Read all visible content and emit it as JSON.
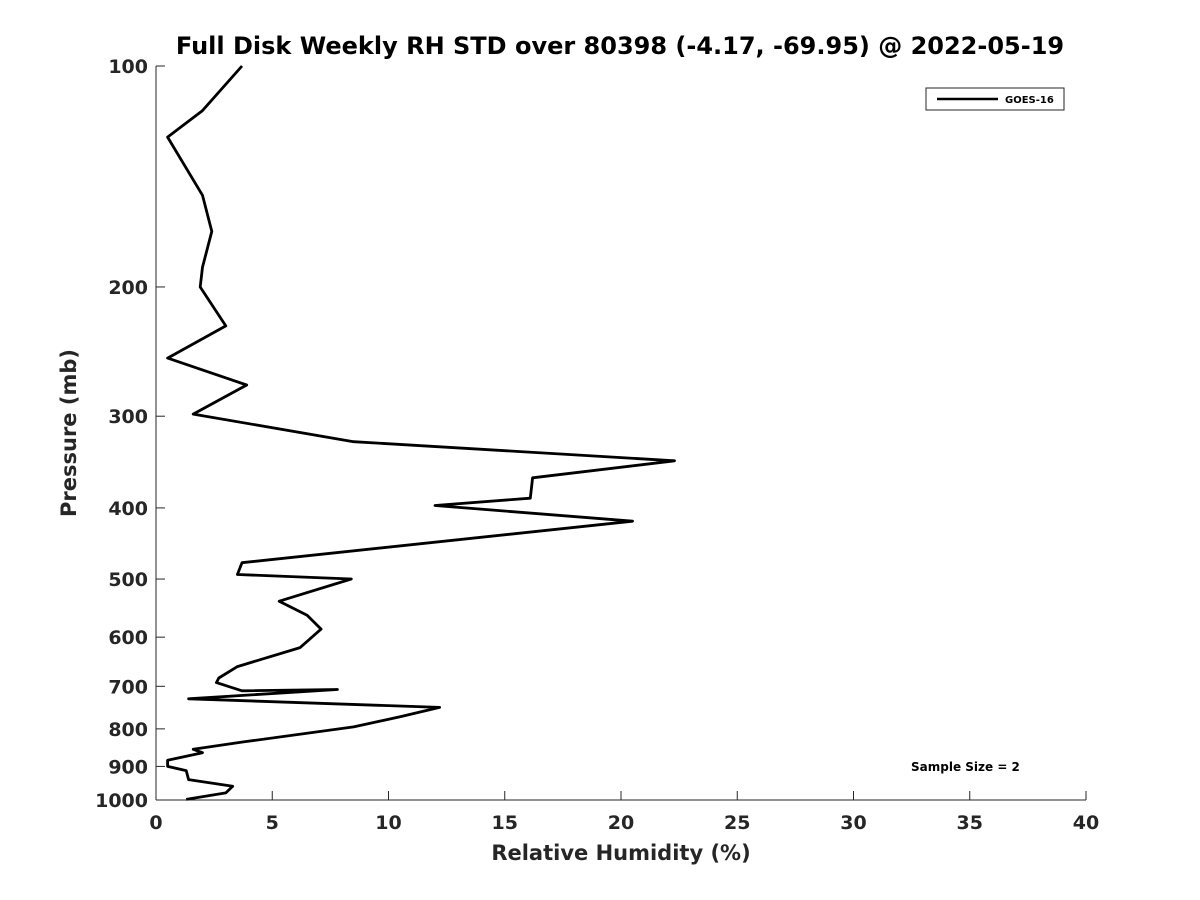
{
  "chart_data": {
    "type": "line",
    "title": "Full Disk Weekly RH STD over 80398 (-4.17, -69.95) @ 2022-05-19",
    "xlabel": "Relative Humidity (%)",
    "ylabel": "Pressure (mb)",
    "xlim": [
      0,
      40
    ],
    "ylim": [
      1000,
      100
    ],
    "yscale": "log",
    "y_reversed": true,
    "xticks": [
      0,
      5,
      10,
      15,
      20,
      25,
      30,
      35,
      40
    ],
    "yticks": [
      100,
      200,
      300,
      400,
      500,
      600,
      700,
      800,
      900,
      1000
    ],
    "grid": false,
    "legend_location": "top-right",
    "annotation": "Sample Size = 2",
    "series": [
      {
        "name": "GOES-16",
        "color": "#000000",
        "x": [
          3.7,
          2.0,
          0.5,
          2.0,
          2.4,
          2.0,
          1.9,
          3.0,
          0.5,
          3.9,
          1.6,
          8.5,
          22.3,
          16.2,
          16.1,
          12.0,
          20.5,
          3.7,
          3.5,
          8.4,
          5.3,
          6.5,
          7.1,
          6.2,
          3.5,
          2.7,
          2.6,
          3.7,
          7.8,
          1.4,
          12.2,
          10.5,
          8.5,
          3.8,
          1.6,
          2.0,
          0.5,
          0.5,
          1.3,
          1.4,
          3.3,
          3.0,
          1.3
        ],
        "y": [
          100,
          115,
          125,
          150,
          168,
          188,
          200,
          226,
          250,
          272,
          298,
          325,
          345,
          364,
          388,
          397,
          417,
          475,
          493,
          500,
          536,
          560,
          585,
          620,
          658,
          682,
          692,
          710,
          707,
          728,
          748,
          770,
          795,
          833,
          853,
          862,
          883,
          900,
          912,
          938,
          958,
          978,
          998
        ]
      }
    ]
  }
}
